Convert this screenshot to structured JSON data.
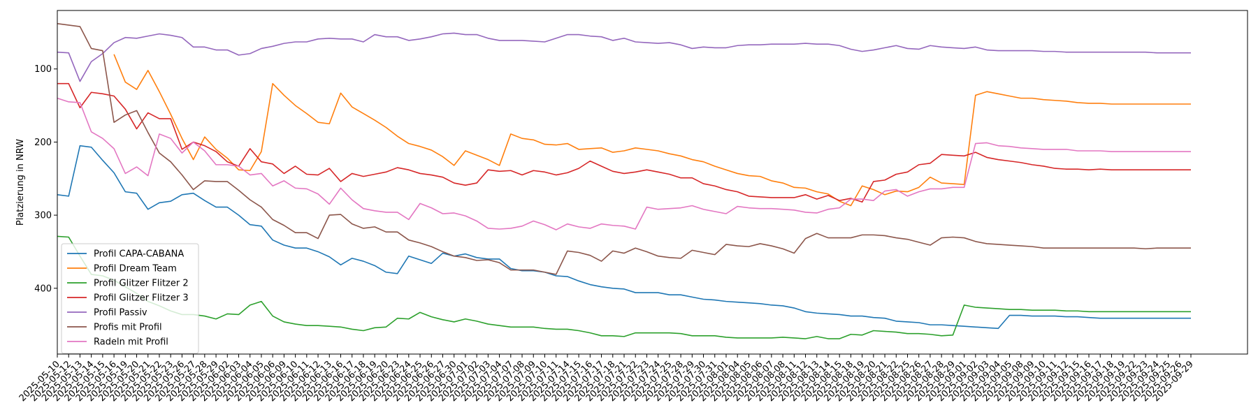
{
  "chart_data": {
    "type": "line",
    "title": "",
    "xlabel": "",
    "ylabel": "Platzierung in NRW",
    "y_inverted": true,
    "ylim": [
      490,
      20
    ],
    "yticks": [
      100,
      200,
      300,
      400
    ],
    "grid": false,
    "legend_position": "lower-left",
    "x": [
      "2025-05-10",
      "2025-05-12",
      "2025-05-13",
      "2025-05-14",
      "2025-05-15",
      "2025-05-16",
      "2025-05-19",
      "2025-05-20",
      "2025-05-21",
      "2025-05-22",
      "2025-05-23",
      "2025-05-26",
      "2025-05-27",
      "2025-05-28",
      "2025-05-29",
      "2025-06-02",
      "2025-06-03",
      "2025-06-04",
      "2025-06-05",
      "2025-06-06",
      "2025-06-09",
      "2025-06-10",
      "2025-06-11",
      "2025-06-12",
      "2025-06-13",
      "2025-06-16",
      "2025-06-17",
      "2025-06-18",
      "2025-06-19",
      "2025-06-20",
      "2025-06-23",
      "2025-06-24",
      "2025-06-25",
      "2025-06-26",
      "2025-06-27",
      "2025-06-30",
      "2025-07-01",
      "2025-07-02",
      "2025-07-03",
      "2025-07-04",
      "2025-07-07",
      "2025-07-08",
      "2025-07-09",
      "2025-07-10",
      "2025-07-11",
      "2025-07-14",
      "2025-07-15",
      "2025-07-16",
      "2025-07-17",
      "2025-07-18",
      "2025-07-21",
      "2025-07-22",
      "2025-07-23",
      "2025-07-24",
      "2025-07-25",
      "2025-07-28",
      "2025-07-29",
      "2025-07-30",
      "2025-07-31",
      "2025-08-01",
      "2025-08-04",
      "2025-08-05",
      "2025-08-06",
      "2025-08-07",
      "2025-08-08",
      "2025-08-11",
      "2025-08-12",
      "2025-08-13",
      "2025-08-14",
      "2025-08-15",
      "2025-08-18",
      "2025-08-19",
      "2025-08-20",
      "2025-08-21",
      "2025-08-22",
      "2025-08-25",
      "2025-08-26",
      "2025-08-27",
      "2025-08-28",
      "2025-08-29",
      "2025-09-01",
      "2025-09-02",
      "2025-09-03",
      "2025-09-04",
      "2025-09-05",
      "2025-09-08",
      "2025-09-09",
      "2025-09-10",
      "2025-09-11",
      "2025-09-12",
      "2025-09-15",
      "2025-09-16",
      "2025-09-17",
      "2025-09-18",
      "2025-09-19",
      "2025-09-22",
      "2025-09-23",
      "2025-09-24",
      "2025-09-25",
      "2025-09-26",
      "2025-09-29"
    ],
    "series": [
      {
        "name": "Profil CAPA-CABANA",
        "color": "#1f77b4",
        "values": [
          272,
          274,
          205,
          207,
          225,
          242,
          268,
          270,
          292,
          283,
          281,
          272,
          270,
          280,
          289,
          289,
          300,
          313,
          315,
          334,
          341,
          345,
          345,
          350,
          357,
          368,
          359,
          363,
          369,
          378,
          380,
          356,
          361,
          366,
          352,
          356,
          353,
          358,
          360,
          360,
          373,
          376,
          376,
          378,
          383,
          384,
          390,
          395,
          398,
          400,
          401,
          406,
          406,
          406,
          409,
          409,
          412,
          415,
          416,
          418,
          419,
          420,
          421,
          423,
          424,
          427,
          432,
          434,
          435,
          436,
          438,
          438,
          440,
          441,
          445,
          446,
          447,
          450,
          450,
          451,
          452,
          453,
          454,
          455,
          437,
          437,
          438,
          438,
          438,
          439,
          439,
          440,
          441,
          441,
          441,
          441,
          441,
          441,
          441,
          441,
          441
        ]
      },
      {
        "name": "Profil Dream Team",
        "color": "#ff7f0e",
        "values": [
          null,
          null,
          null,
          null,
          null,
          80,
          118,
          128,
          102,
          131,
          162,
          195,
          224,
          193,
          210,
          222,
          238,
          239,
          213,
          120,
          136,
          150,
          161,
          173,
          175,
          133,
          152,
          161,
          170,
          180,
          192,
          202,
          206,
          211,
          220,
          232,
          212,
          218,
          224,
          232,
          189,
          195,
          197,
          203,
          204,
          202,
          210,
          209,
          208,
          214,
          212,
          208,
          210,
          212,
          216,
          219,
          224,
          227,
          233,
          238,
          243,
          246,
          247,
          253,
          256,
          262,
          263,
          268,
          271,
          281,
          287,
          260,
          265,
          272,
          267,
          268,
          262,
          248,
          256,
          257,
          258,
          136,
          131,
          134,
          137,
          140,
          140,
          142,
          143,
          144,
          146,
          147,
          147,
          148,
          148,
          148,
          148,
          148,
          148,
          148,
          148
        ]
      },
      {
        "name": "Profil Glitzer Flitzer 2",
        "color": "#2ca02c",
        "values": [
          329,
          330,
          356,
          381,
          383,
          389,
          398,
          407,
          418,
          424,
          431,
          436,
          436,
          438,
          442,
          435,
          436,
          423,
          418,
          438,
          446,
          449,
          451,
          451,
          452,
          453,
          456,
          458,
          454,
          453,
          441,
          442,
          433,
          439,
          443,
          446,
          442,
          445,
          449,
          451,
          453,
          453,
          453,
          455,
          456,
          456,
          458,
          461,
          465,
          465,
          466,
          461,
          461,
          461,
          461,
          462,
          465,
          465,
          465,
          467,
          468,
          468,
          468,
          468,
          467,
          468,
          469,
          466,
          469,
          469,
          463,
          464,
          458,
          459,
          460,
          462,
          462,
          463,
          465,
          464,
          423,
          426,
          427,
          428,
          429,
          429,
          430,
          430,
          430,
          431,
          431,
          432,
          432,
          432,
          432,
          432,
          432,
          432,
          432,
          432,
          432
        ]
      },
      {
        "name": "Profil Glitzer Flitzer 3",
        "color": "#d62728",
        "values": [
          120,
          120,
          153,
          132,
          134,
          137,
          155,
          182,
          160,
          168,
          168,
          210,
          200,
          205,
          213,
          227,
          233,
          209,
          227,
          230,
          243,
          233,
          244,
          245,
          236,
          254,
          243,
          247,
          244,
          241,
          235,
          238,
          243,
          245,
          248,
          256,
          259,
          256,
          238,
          240,
          239,
          245,
          239,
          241,
          245,
          242,
          236,
          226,
          233,
          240,
          243,
          241,
          238,
          241,
          244,
          249,
          249,
          257,
          260,
          265,
          268,
          274,
          275,
          276,
          276,
          276,
          272,
          278,
          273,
          280,
          277,
          282,
          254,
          252,
          244,
          241,
          231,
          229,
          217,
          218,
          219,
          214,
          221,
          224,
          226,
          228,
          231,
          233,
          236,
          237,
          237,
          238,
          237,
          238,
          238,
          238,
          238,
          238,
          238,
          238,
          238
        ]
      },
      {
        "name": "Profil Passiv",
        "color": "#9467bd",
        "values": [
          77,
          78,
          117,
          90,
          79,
          64,
          57,
          58,
          55,
          52,
          54,
          57,
          70,
          70,
          74,
          74,
          81,
          79,
          72,
          69,
          65,
          63,
          63,
          59,
          58,
          59,
          59,
          63,
          53,
          56,
          56,
          61,
          59,
          56,
          52,
          51,
          53,
          53,
          58,
          61,
          61,
          61,
          62,
          63,
          58,
          53,
          53,
          55,
          56,
          61,
          58,
          63,
          64,
          65,
          64,
          67,
          72,
          70,
          71,
          71,
          68,
          67,
          67,
          66,
          66,
          66,
          65,
          66,
          66,
          68,
          73,
          76,
          74,
          71,
          68,
          72,
          73,
          68,
          70,
          71,
          72,
          70,
          74,
          75,
          75,
          75,
          75,
          76,
          76,
          77,
          77,
          77,
          77,
          77,
          77,
          77,
          77,
          78,
          78,
          78,
          78
        ]
      },
      {
        "name": "Profis mit Profil",
        "color": "#8c564b",
        "values": [
          38,
          40,
          42,
          72,
          75,
          173,
          163,
          157,
          187,
          215,
          227,
          245,
          265,
          253,
          254,
          254,
          266,
          279,
          289,
          306,
          314,
          324,
          324,
          332,
          300,
          299,
          312,
          318,
          316,
          323,
          323,
          334,
          338,
          343,
          350,
          356,
          358,
          362,
          361,
          365,
          375,
          375,
          375,
          378,
          381,
          349,
          351,
          355,
          363,
          349,
          352,
          345,
          350,
          356,
          358,
          359,
          348,
          351,
          354,
          340,
          342,
          343,
          339,
          342,
          346,
          352,
          332,
          325,
          331,
          331,
          331,
          327,
          327,
          328,
          331,
          333,
          337,
          341,
          331,
          330,
          331,
          336,
          339,
          340,
          341,
          342,
          343,
          345,
          345,
          345,
          345,
          345,
          345,
          345,
          345,
          345,
          346,
          345,
          345,
          345,
          345
        ]
      },
      {
        "name": "Radeln mit Profil",
        "color": "#e377c2",
        "values": [
          140,
          145,
          146,
          186,
          195,
          209,
          243,
          234,
          246,
          189,
          195,
          215,
          200,
          212,
          231,
          231,
          233,
          245,
          243,
          260,
          253,
          263,
          264,
          271,
          285,
          263,
          279,
          291,
          294,
          296,
          296,
          306,
          284,
          290,
          298,
          297,
          301,
          308,
          318,
          319,
          318,
          315,
          308,
          313,
          320,
          312,
          316,
          318,
          312,
          314,
          315,
          319,
          289,
          292,
          291,
          290,
          287,
          292,
          295,
          298,
          288,
          290,
          291,
          291,
          292,
          293,
          296,
          297,
          292,
          290,
          278,
          278,
          280,
          267,
          265,
          274,
          268,
          264,
          264,
          262,
          262,
          202,
          201,
          205,
          206,
          208,
          209,
          210,
          210,
          210,
          212,
          212,
          212,
          213,
          213,
          213,
          213,
          213,
          213,
          213,
          213
        ]
      }
    ]
  }
}
